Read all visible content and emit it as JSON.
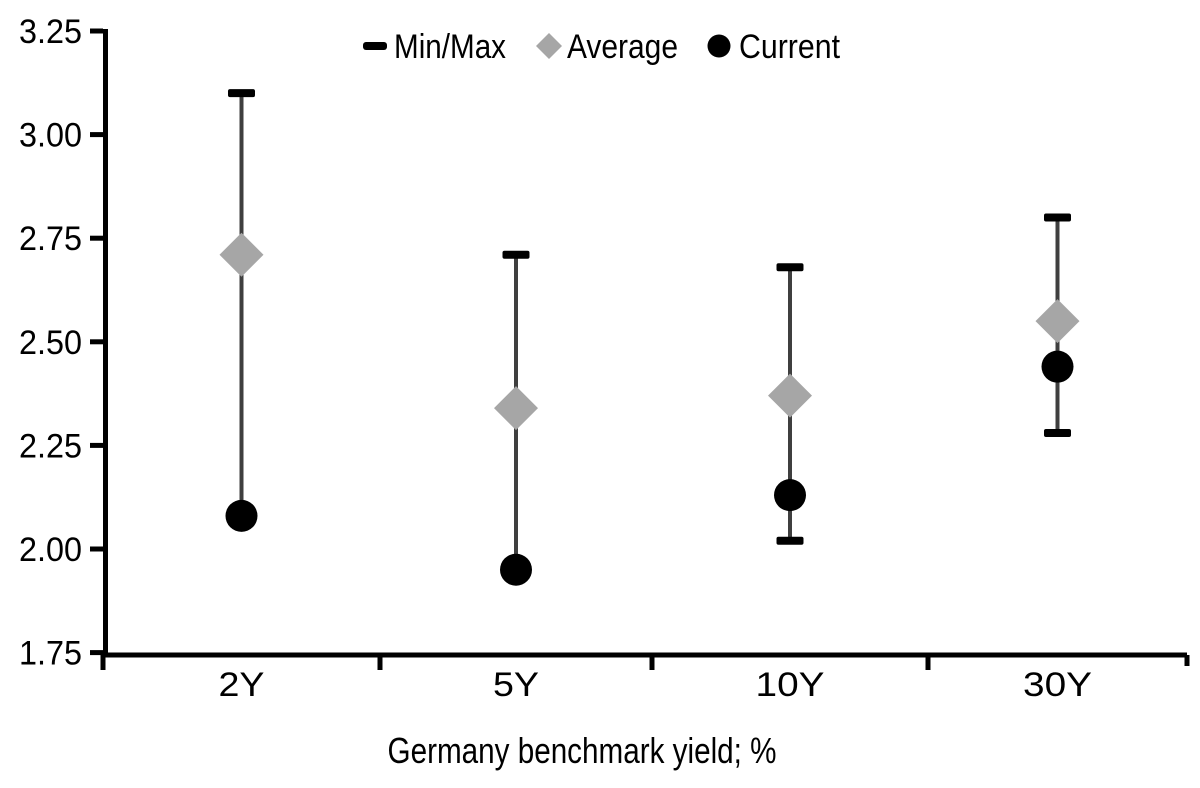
{
  "chart_data": {
    "type": "scatter",
    "subtype": "min-max-range-with-average-and-current",
    "title": "",
    "xlabel": "Germany benchmark yield; %",
    "ylabel": "",
    "categories": [
      "2Y",
      "5Y",
      "10Y",
      "30Y"
    ],
    "series": [
      {
        "name": "Min/Max",
        "marker": "dash",
        "color": "#000000",
        "max": [
          3.1,
          2.71,
          2.68,
          2.8
        ],
        "min": [
          2.08,
          1.95,
          2.02,
          2.28
        ]
      },
      {
        "name": "Average",
        "marker": "diamond",
        "color": "#a6a6a6",
        "values": [
          2.71,
          2.34,
          2.37,
          2.55
        ]
      },
      {
        "name": "Current",
        "marker": "circle",
        "color": "#000000",
        "values": [
          2.08,
          1.95,
          2.13,
          2.44
        ]
      }
    ],
    "ylim": [
      1.75,
      3.25
    ],
    "ytick_step": 0.25,
    "ytick_labels": [
      "3.25",
      "3.00",
      "2.75",
      "2.50",
      "2.25",
      "2.00",
      "1.75"
    ],
    "xtick_labels": [
      "2Y",
      "5Y",
      "10Y",
      "30Y"
    ],
    "grid": false,
    "legend": {
      "position": "top-center",
      "items": [
        {
          "label": "Min/Max",
          "marker": "dash"
        },
        {
          "label": "Average",
          "marker": "diamond"
        },
        {
          "label": "Current",
          "marker": "circle"
        }
      ]
    },
    "colors": {
      "background": "#ffffff",
      "axis": "#000000",
      "text": "#000000",
      "range_line": "#3f3f3f",
      "minmax_cap": "#000000",
      "average": "#a6a6a6",
      "current": "#000000"
    }
  }
}
